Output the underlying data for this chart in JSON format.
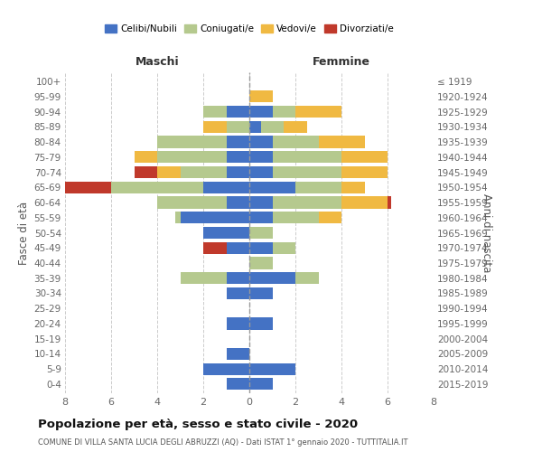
{
  "age_groups": [
    "0-4",
    "5-9",
    "10-14",
    "15-19",
    "20-24",
    "25-29",
    "30-34",
    "35-39",
    "40-44",
    "45-49",
    "50-54",
    "55-59",
    "60-64",
    "65-69",
    "70-74",
    "75-79",
    "80-84",
    "85-89",
    "90-94",
    "95-99",
    "100+"
  ],
  "birth_years": [
    "2015-2019",
    "2010-2014",
    "2005-2009",
    "2000-2004",
    "1995-1999",
    "1990-1994",
    "1985-1989",
    "1980-1984",
    "1975-1979",
    "1970-1974",
    "1965-1969",
    "1960-1964",
    "1955-1959",
    "1950-1954",
    "1945-1949",
    "1940-1944",
    "1935-1939",
    "1930-1934",
    "1925-1929",
    "1920-1924",
    "≤ 1919"
  ],
  "colors": {
    "celibi": "#4472c4",
    "coniugati": "#b5c98e",
    "vedovi": "#f0b942",
    "divorziati": "#c0392b"
  },
  "maschi": {
    "celibi": [
      1,
      2,
      1,
      0,
      1,
      0,
      1,
      1,
      0,
      1,
      2,
      3,
      1,
      2,
      1,
      1,
      1,
      0,
      1,
      0,
      0
    ],
    "coniugati": [
      0,
      0,
      0,
      0,
      0,
      0,
      0,
      2,
      0,
      0,
      0,
      0.2,
      3,
      4,
      2,
      3,
      3,
      1,
      1,
      0,
      0
    ],
    "vedovi": [
      0,
      0,
      0,
      0,
      0,
      0,
      0,
      0,
      0,
      0,
      0,
      0,
      0,
      0,
      1,
      1,
      0,
      1,
      0,
      0,
      0
    ],
    "divorziati": [
      0,
      0,
      0,
      0,
      0,
      0,
      0,
      0,
      0,
      1,
      0,
      0,
      0,
      2,
      1,
      0,
      0,
      0,
      0,
      0,
      0
    ]
  },
  "femmine": {
    "celibi": [
      1,
      2,
      0,
      0,
      1,
      0,
      1,
      2,
      0,
      1,
      0,
      1,
      1,
      2,
      1,
      1,
      1,
      0.5,
      1,
      0,
      0
    ],
    "coniugati": [
      0,
      0,
      0,
      0,
      0,
      0,
      0,
      1,
      1,
      1,
      1,
      2,
      3,
      2,
      3,
      3,
      2,
      1,
      1,
      0,
      0
    ],
    "vedovi": [
      0,
      0,
      0,
      0,
      0,
      0,
      0,
      0,
      0,
      0,
      0,
      1,
      2,
      1,
      2,
      2,
      2,
      1,
      2,
      1,
      0
    ],
    "divorziati": [
      0,
      0,
      0,
      0,
      0,
      0,
      0,
      0,
      0,
      0,
      0,
      0,
      0.15,
      0,
      0,
      0,
      0,
      0,
      0,
      0,
      0
    ]
  },
  "title": "Popolazione per età, sesso e stato civile - 2020",
  "subtitle": "COMUNE DI VILLA SANTA LUCIA DEGLI ABRUZZI (AQ) - Dati ISTAT 1° gennaio 2020 - TUTTITALIA.IT",
  "xlabel_left": "Maschi",
  "xlabel_right": "Femmine",
  "ylabel_left": "Fasce di età",
  "ylabel_right": "Anni di nascita",
  "xlim": 8,
  "legend_labels": [
    "Celibi/Nubili",
    "Coniugati/e",
    "Vedovi/e",
    "Divorziati/e"
  ],
  "bg_color": "#ffffff",
  "grid_color": "#cccccc"
}
